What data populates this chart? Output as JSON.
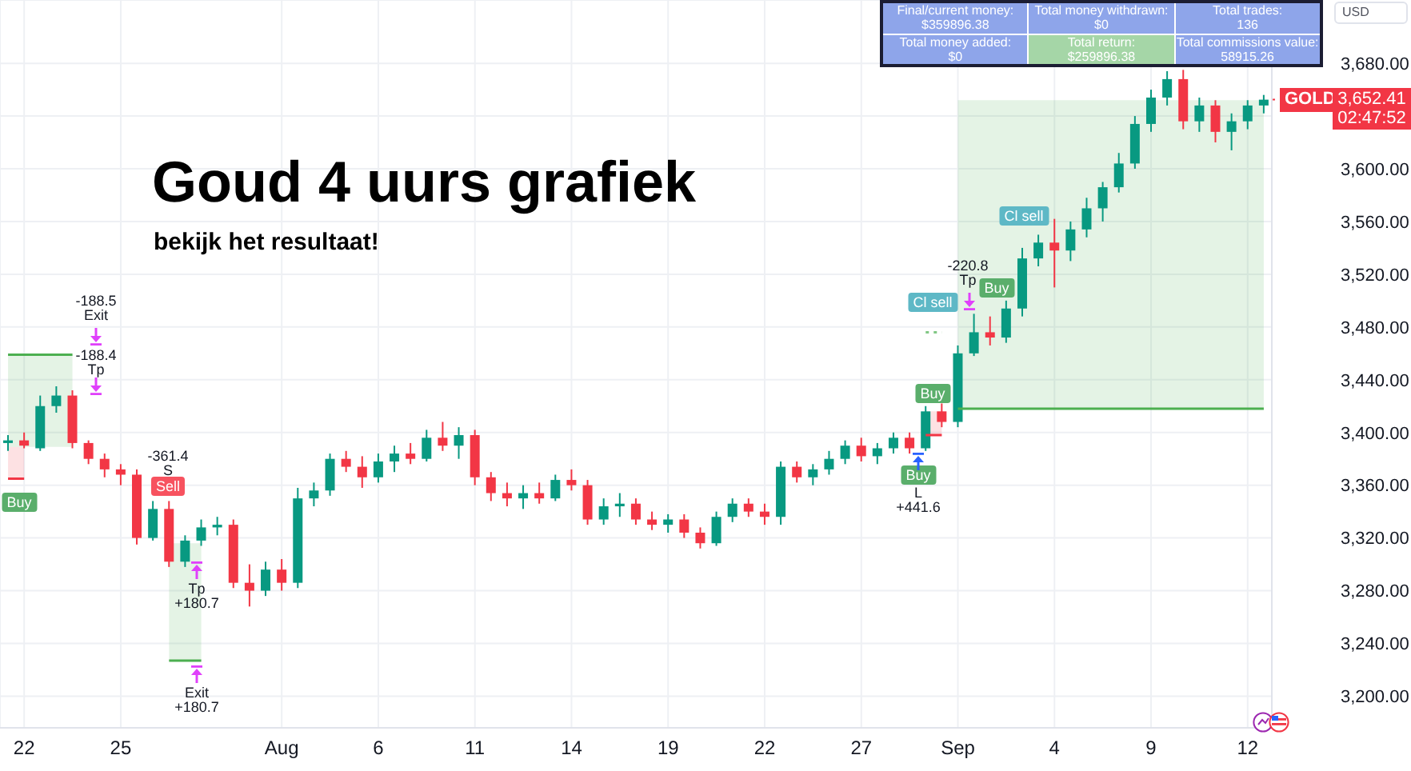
{
  "chart_data": {
    "type": "candlestick",
    "title": "Goud 4 uurs grafiek",
    "subtitle": "bekijk het resultaat!",
    "ylabel": "USD",
    "categories": [
      null,
      "22",
      null,
      null,
      null,
      null,
      null,
      "25",
      null,
      null,
      null,
      null,
      null,
      null,
      null,
      null,
      null,
      "Aug",
      null,
      null,
      null,
      null,
      null,
      "6",
      null,
      null,
      null,
      null,
      null,
      "11",
      null,
      null,
      null,
      null,
      null,
      "14",
      null,
      null,
      null,
      null,
      null,
      "19",
      null,
      null,
      null,
      null,
      null,
      "22",
      null,
      null,
      null,
      null,
      null,
      "27",
      null,
      null,
      null,
      null,
      null,
      "Sep",
      null,
      null,
      null,
      null,
      null,
      "4",
      null,
      null,
      null,
      null,
      null,
      "9",
      null,
      null,
      null,
      null,
      null,
      "12",
      null
    ],
    "ohlc": [
      [
        3392,
        3398,
        3386,
        3394
      ],
      [
        3394,
        3400,
        3388,
        3390
      ],
      [
        3388,
        3428,
        3386,
        3420
      ],
      [
        3420,
        3435,
        3415,
        3428
      ],
      [
        3428,
        3432,
        3388,
        3392
      ],
      [
        3392,
        3394,
        3376,
        3380
      ],
      [
        3380,
        3384,
        3366,
        3372
      ],
      [
        3372,
        3376,
        3360,
        3368
      ],
      [
        3368,
        3372,
        3315,
        3320
      ],
      [
        3320,
        3348,
        3318,
        3342
      ],
      [
        3342,
        3348,
        3298,
        3302
      ],
      [
        3302,
        3322,
        3298,
        3318
      ],
      [
        3318,
        3334,
        3314,
        3328
      ],
      [
        3328,
        3336,
        3322,
        3330
      ],
      [
        3330,
        3334,
        3282,
        3286
      ],
      [
        3286,
        3300,
        3268,
        3280
      ],
      [
        3280,
        3302,
        3276,
        3296
      ],
      [
        3296,
        3304,
        3280,
        3286
      ],
      [
        3286,
        3358,
        3282,
        3350
      ],
      [
        3350,
        3362,
        3344,
        3356
      ],
      [
        3356,
        3384,
        3352,
        3380
      ],
      [
        3380,
        3386,
        3370,
        3374
      ],
      [
        3374,
        3382,
        3358,
        3366
      ],
      [
        3366,
        3384,
        3362,
        3378
      ],
      [
        3378,
        3390,
        3370,
        3384
      ],
      [
        3384,
        3392,
        3376,
        3380
      ],
      [
        3380,
        3402,
        3378,
        3396
      ],
      [
        3396,
        3408,
        3386,
        3390
      ],
      [
        3390,
        3404,
        3380,
        3398
      ],
      [
        3398,
        3402,
        3360,
        3366
      ],
      [
        3366,
        3370,
        3348,
        3354
      ],
      [
        3354,
        3362,
        3344,
        3350
      ],
      [
        3350,
        3360,
        3342,
        3354
      ],
      [
        3354,
        3362,
        3346,
        3350
      ],
      [
        3350,
        3368,
        3348,
        3364
      ],
      [
        3364,
        3372,
        3356,
        3360
      ],
      [
        3360,
        3364,
        3330,
        3334
      ],
      [
        3334,
        3350,
        3330,
        3344
      ],
      [
        3344,
        3354,
        3336,
        3346
      ],
      [
        3346,
        3350,
        3330,
        3334
      ],
      [
        3334,
        3340,
        3326,
        3330
      ],
      [
        3330,
        3338,
        3324,
        3334
      ],
      [
        3334,
        3338,
        3320,
        3324
      ],
      [
        3324,
        3328,
        3312,
        3316
      ],
      [
        3316,
        3340,
        3314,
        3336
      ],
      [
        3336,
        3350,
        3332,
        3346
      ],
      [
        3346,
        3350,
        3336,
        3340
      ],
      [
        3340,
        3346,
        3330,
        3336
      ],
      [
        3336,
        3378,
        3330,
        3374
      ],
      [
        3374,
        3378,
        3362,
        3366
      ],
      [
        3366,
        3376,
        3360,
        3372
      ],
      [
        3372,
        3386,
        3368,
        3380
      ],
      [
        3380,
        3394,
        3376,
        3390
      ],
      [
        3390,
        3396,
        3378,
        3382
      ],
      [
        3382,
        3392,
        3376,
        3388
      ],
      [
        3388,
        3400,
        3384,
        3396
      ],
      [
        3396,
        3400,
        3384,
        3388
      ],
      [
        3388,
        3420,
        3386,
        3416
      ],
      [
        3416,
        3422,
        3404,
        3408
      ],
      [
        3408,
        3466,
        3404,
        3460
      ],
      [
        3460,
        3490,
        3458,
        3476
      ],
      [
        3476,
        3488,
        3466,
        3472
      ],
      [
        3472,
        3500,
        3468,
        3494
      ],
      [
        3494,
        3540,
        3488,
        3532
      ],
      [
        3532,
        3550,
        3526,
        3544
      ],
      [
        3544,
        3562,
        3510,
        3538
      ],
      [
        3538,
        3560,
        3530,
        3554
      ],
      [
        3554,
        3578,
        3548,
        3570
      ],
      [
        3570,
        3590,
        3560,
        3586
      ],
      [
        3586,
        3612,
        3582,
        3604
      ],
      [
        3604,
        3640,
        3600,
        3634
      ],
      [
        3634,
        3660,
        3628,
        3654
      ],
      [
        3654,
        3674,
        3648,
        3668
      ],
      [
        3668,
        3675,
        3630,
        3636
      ],
      [
        3636,
        3654,
        3628,
        3648
      ],
      [
        3648,
        3652,
        3620,
        3628
      ],
      [
        3628,
        3642,
        3614,
        3636
      ],
      [
        3636,
        3652,
        3630,
        3648
      ],
      [
        3648,
        3656,
        3642,
        3652.41
      ]
    ],
    "colors": [
      "#089981",
      "#f23645",
      "#089981",
      "#089981",
      "#f23645",
      "#f23645",
      "#f23645",
      "#f23645",
      "#f23645",
      "#089981",
      "#f23645",
      "#089981",
      "#089981",
      "#089981",
      "#f23645",
      "#f23645",
      "#089981",
      "#f23645",
      "#089981",
      "#089981",
      "#089981",
      "#f23645",
      "#f23645",
      "#089981",
      "#089981",
      "#f23645",
      "#089981",
      "#f23645",
      "#089981",
      "#f23645",
      "#f23645",
      "#f23645",
      "#089981",
      "#f23645",
      "#089981",
      "#f23645",
      "#f23645",
      "#089981",
      "#089981",
      "#f23645",
      "#f23645",
      "#089981",
      "#f23645",
      "#f23645",
      "#089981",
      "#089981",
      "#f23645",
      "#f23645",
      "#089981",
      "#f23645",
      "#089981",
      "#089981",
      "#089981",
      "#f23645",
      "#089981",
      "#089981",
      "#f23645",
      "#089981",
      "#f23645",
      "#089981",
      "#089981",
      "#f23645",
      "#089981",
      "#089981",
      "#089981",
      "#f23645",
      "#089981",
      "#089981",
      "#089981",
      "#089981",
      "#089981",
      "#089981",
      "#089981",
      "#f23645",
      "#089981",
      "#f23645",
      "#089981",
      "#089981",
      "#089981"
    ],
    "series": [
      {
        "type": "line",
        "color": "#4caf50",
        "values": [
          3459,
          3459,
          3459,
          3459,
          3459,
          null,
          null,
          null,
          null,
          null,
          3227,
          3227,
          3227,
          null,
          null,
          null,
          null,
          null,
          null,
          null,
          null,
          null,
          null,
          null,
          null,
          null,
          null,
          null,
          null,
          null,
          null,
          null,
          null,
          null,
          null,
          null,
          null,
          null,
          null,
          null,
          null,
          null,
          null,
          null,
          null,
          null,
          null,
          null,
          null,
          null,
          null,
          null,
          null,
          null,
          null,
          null,
          null,
          null,
          null,
          null,
          null,
          null,
          null,
          null,
          null,
          null,
          null,
          null,
          null,
          null,
          null,
          null,
          null,
          null,
          null,
          null,
          null,
          null,
          null
        ],
        "lower": [
          3389,
          3389,
          3389,
          3389,
          3389,
          null,
          null,
          null,
          null,
          null,
          3227,
          3227,
          3227,
          null,
          null,
          null,
          null,
          null,
          null,
          null,
          null,
          null,
          null,
          null,
          null,
          null,
          null,
          null,
          null,
          null,
          null,
          null,
          null,
          null,
          null,
          null,
          null,
          null,
          null,
          null,
          null,
          null,
          null,
          null,
          null,
          null,
          null,
          null,
          null,
          null,
          null,
          null,
          null,
          null,
          null,
          null,
          null,
          null,
          null,
          null,
          null,
          null,
          null,
          null,
          null,
          null,
          null,
          null,
          null,
          null,
          null,
          null,
          null,
          null,
          null,
          null,
          null,
          null,
          null
        ],
        "upper": [
          3459,
          3459,
          3459,
          3459,
          3459,
          null,
          null,
          null,
          null,
          null,
          3316,
          3316,
          3316,
          null,
          null,
          null,
          null,
          null,
          null,
          null,
          null,
          null,
          null,
          null,
          null,
          null,
          null,
          null,
          null,
          null,
          null,
          null,
          null,
          null,
          null,
          null,
          null,
          null,
          null,
          null,
          null,
          null,
          null,
          null,
          null,
          null,
          null,
          null,
          null,
          null,
          null,
          null,
          null,
          null,
          null,
          null,
          null,
          null,
          null,
          null,
          null,
          null,
          null,
          null,
          null,
          null,
          null,
          null,
          null,
          null,
          null,
          null,
          null,
          null,
          null,
          null,
          null,
          null,
          null
        ]
      },
      {
        "type": "line",
        "color": "#81c784",
        "line_style": "dotted",
        "values": [
          null,
          null,
          null,
          null,
          null,
          null,
          null,
          null,
          null,
          null,
          null,
          null,
          null,
          null,
          null,
          null,
          null,
          null,
          null,
          null,
          null,
          null,
          null,
          null,
          null,
          null,
          null,
          null,
          null,
          null,
          null,
          null,
          null,
          null,
          null,
          null,
          null,
          null,
          null,
          null,
          null,
          null,
          null,
          null,
          null,
          null,
          null,
          null,
          null,
          null,
          null,
          null,
          null,
          null,
          null,
          null,
          null,
          3476,
          3476,
          null,
          null,
          null,
          null,
          null,
          null,
          null,
          null,
          null,
          null,
          null,
          null,
          null,
          null,
          null,
          null,
          null,
          null,
          null,
          null
        ]
      },
      {
        "type": "line",
        "color": "#f23645",
        "values": [
          3365,
          3365,
          null,
          null,
          null,
          null,
          null,
          null,
          null,
          null,
          null,
          null,
          null,
          null,
          null,
          null,
          null,
          null,
          null,
          null,
          null,
          null,
          null,
          null,
          null,
          null,
          null,
          null,
          null,
          null,
          null,
          null,
          null,
          null,
          null,
          null,
          null,
          null,
          null,
          null,
          null,
          null,
          null,
          null,
          null,
          null,
          null,
          null,
          null,
          null,
          null,
          null,
          null,
          null,
          null,
          null,
          null,
          3398,
          3398,
          null,
          null,
          null,
          null,
          null,
          null,
          null,
          null,
          null,
          null,
          null,
          null,
          null,
          null,
          null,
          null,
          null,
          null,
          null,
          null
        ],
        "lower": [
          3365,
          3365,
          null,
          null,
          null,
          null,
          null,
          null,
          null,
          null,
          null,
          null,
          null,
          null,
          null,
          null,
          null,
          null,
          null,
          null,
          null,
          null,
          null,
          null,
          null,
          null,
          null,
          null,
          null,
          null,
          null,
          null,
          null,
          null,
          null,
          null,
          null,
          null,
          null,
          null,
          null,
          null,
          null,
          null,
          null,
          null,
          null,
          null,
          null,
          null,
          null,
          null,
          null,
          null,
          null,
          null,
          null,
          3398,
          3398,
          null,
          null,
          null,
          null,
          null,
          null,
          null,
          null,
          null,
          null,
          null,
          null,
          null,
          null,
          null,
          null,
          null,
          null,
          null,
          null
        ],
        "upper": [
          3389,
          3389,
          null,
          null,
          null,
          null,
          null,
          null,
          null,
          null,
          null,
          null,
          null,
          null,
          null,
          null,
          null,
          null,
          null,
          null,
          null,
          null,
          null,
          null,
          null,
          null,
          null,
          null,
          null,
          null,
          null,
          null,
          null,
          null,
          null,
          null,
          null,
          null,
          null,
          null,
          null,
          null,
          null,
          null,
          null,
          null,
          null,
          null,
          null,
          null,
          null,
          null,
          null,
          null,
          null,
          null,
          null,
          3416,
          3416,
          null,
          null,
          null,
          null,
          null,
          null,
          null,
          null,
          null,
          null,
          null,
          null,
          null,
          null,
          null,
          null,
          null,
          null,
          null,
          null
        ]
      },
      {
        "type": "line",
        "color": "#4caf50",
        "values": [
          null,
          null,
          null,
          null,
          null,
          null,
          null,
          null,
          null,
          null,
          null,
          null,
          null,
          null,
          null,
          null,
          null,
          null,
          null,
          null,
          null,
          null,
          null,
          null,
          null,
          null,
          null,
          null,
          null,
          null,
          null,
          null,
          null,
          null,
          null,
          null,
          null,
          null,
          null,
          null,
          null,
          null,
          null,
          null,
          null,
          null,
          null,
          null,
          null,
          null,
          null,
          null,
          null,
          null,
          null,
          null,
          null,
          null,
          null,
          3418,
          3418,
          3418,
          3418,
          3418,
          3418,
          3418,
          3418,
          3418,
          3418,
          3418,
          3418,
          3418,
          3418,
          3418,
          3418,
          3418,
          3418,
          3418,
          3418
        ],
        "lower": [
          null,
          null,
          null,
          null,
          null,
          null,
          null,
          null,
          null,
          null,
          null,
          null,
          null,
          null,
          null,
          null,
          null,
          null,
          null,
          null,
          null,
          null,
          null,
          null,
          null,
          null,
          null,
          null,
          null,
          null,
          null,
          null,
          null,
          null,
          null,
          null,
          null,
          null,
          null,
          null,
          null,
          null,
          null,
          null,
          null,
          null,
          null,
          null,
          null,
          null,
          null,
          null,
          null,
          null,
          null,
          null,
          null,
          null,
          null,
          3418,
          3418,
          3418,
          3418,
          3418,
          3418,
          3418,
          3418,
          3418,
          3418,
          3418,
          3418,
          3418,
          3418,
          3418,
          3418,
          3418,
          3418,
          3418,
          3418
        ],
        "upper": [
          null,
          null,
          null,
          null,
          null,
          null,
          null,
          null,
          null,
          null,
          null,
          null,
          null,
          null,
          null,
          null,
          null,
          null,
          null,
          null,
          null,
          null,
          null,
          null,
          null,
          null,
          null,
          null,
          null,
          null,
          null,
          null,
          null,
          null,
          null,
          null,
          null,
          null,
          null,
          null,
          null,
          null,
          null,
          null,
          null,
          null,
          null,
          null,
          null,
          null,
          null,
          null,
          null,
          null,
          null,
          null,
          null,
          null,
          null,
          3652,
          3652,
          3652,
          3652,
          3652,
          3652,
          3652,
          3652,
          3652,
          3652,
          3652,
          3652,
          3652,
          3652,
          3652,
          3652,
          3652,
          3652,
          3652,
          3652
        ]
      }
    ],
    "ylim": [
      3176,
      3728
    ],
    "yticks": [
      {
        "value": 3200,
        "label": "3,200.00"
      },
      {
        "value": 3240,
        "label": "3,240.00"
      },
      {
        "value": 3280,
        "label": "3,280.00"
      },
      {
        "value": 3320,
        "label": "3,320.00"
      },
      {
        "value": 3360,
        "label": "3,360.00"
      },
      {
        "value": 3400,
        "label": "3,400.00"
      },
      {
        "value": 3440,
        "label": "3,440.00"
      },
      {
        "value": 3480,
        "label": "3,480.00"
      },
      {
        "value": 3520,
        "label": "3,520.00"
      },
      {
        "value": 3560,
        "label": "3,560.00"
      },
      {
        "value": 3600,
        "label": "3,600.00"
      },
      {
        "value": 3640,
        "label": null
      },
      {
        "value": 3680,
        "label": "3,680.00"
      }
    ],
    "grid": true,
    "ref_lines": [
      {
        "axis": "y",
        "value": 3652.41,
        "label": "3,652.41",
        "color": "#f23645",
        "line_style": "dotted"
      }
    ],
    "annotations": [
      "Final/current money:",
      "$359896.38",
      "Total money withdrawn:",
      "$0",
      "Total trades:",
      "136",
      "Total money added:",
      "$0",
      "Total return:",
      "$259896.38",
      "Total commissions value:",
      "58915.26",
      "GOLD",
      "02:47:52",
      "-188.5",
      "Exit",
      "-188.4",
      "Tp",
      "Buy",
      "-361.4",
      "S",
      "Sell",
      "Tp",
      "+180.7",
      "Exit",
      "+180.7",
      "Buy",
      "L",
      "+441.6",
      "Buy",
      "-220.8",
      "Tp",
      "Cl sell",
      "Cl sell",
      "Buy"
    ]
  }
}
